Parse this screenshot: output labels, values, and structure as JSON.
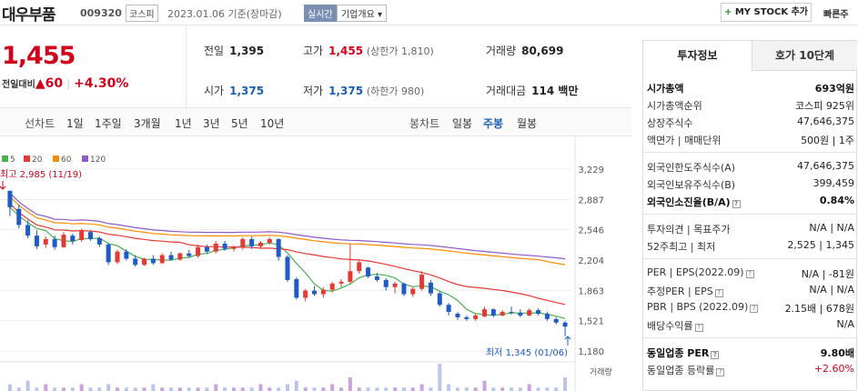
{
  "header": {
    "stock_name": "대우부품",
    "stock_code": "009320",
    "market": "코스피",
    "date_label": "2023.01.06 기준(장마감)",
    "live_label": "실시간",
    "company_info_label": "기업개요 ▾",
    "mystock_label": "MY STOCK 추가",
    "fast_label": "빠른주"
  },
  "price": {
    "current": "1,455",
    "change_label": "전일대비",
    "change_value": "▲60",
    "change_pct": "+4.30%"
  },
  "quotes": {
    "prev_close": {
      "label": "전일",
      "value": "1,395"
    },
    "high": {
      "label": "고가",
      "value": "1,455",
      "sub": "(상한가 1,810)"
    },
    "volume": {
      "label": "거래량",
      "value": "80,699"
    },
    "open": {
      "label": "시가",
      "value": "1,375"
    },
    "low": {
      "label": "저가",
      "value": "1,375",
      "sub": "(하한가 980)"
    },
    "amount": {
      "label": "거래대금",
      "value": "114 백만"
    }
  },
  "period_bar": {
    "line_title": "선차트",
    "line_periods": [
      "1일",
      "1주일",
      "3개월",
      "1년",
      "3년",
      "5년",
      "10년"
    ],
    "candle_title": "봉차트",
    "candle_periods": [
      "일봉",
      "주봉",
      "월봉"
    ],
    "active_candle": "주봉"
  },
  "chart_data": {
    "type": "candlestick",
    "legend": [
      {
        "name": "5",
        "color": "#4caf50"
      },
      {
        "name": "20",
        "color": "#e53935"
      },
      {
        "name": "60",
        "color": "#fb8c00"
      },
      {
        "name": "120",
        "color": "#8e5bc7"
      }
    ],
    "y_ticks": [
      "3,229",
      "2,887",
      "2,546",
      "2,204",
      "1,863",
      "1,521",
      "1,180"
    ],
    "ylim": [
      1180,
      3229
    ],
    "max_label": "최고 2,985 (11/19)",
    "min_label": "최저 1,345 (01/06)",
    "volume_label": "거래량",
    "candles": [
      [
        2985,
        2985,
        2700,
        2800
      ],
      [
        2780,
        2830,
        2560,
        2600
      ],
      [
        2600,
        2650,
        2450,
        2480
      ],
      [
        2480,
        2540,
        2330,
        2360
      ],
      [
        2380,
        2470,
        2340,
        2440
      ],
      [
        2440,
        2480,
        2320,
        2350
      ],
      [
        2350,
        2520,
        2340,
        2490
      ],
      [
        2480,
        2500,
        2380,
        2420
      ],
      [
        2430,
        2560,
        2410,
        2530
      ],
      [
        2520,
        2540,
        2420,
        2440
      ],
      [
        2450,
        2470,
        2350,
        2380
      ],
      [
        2380,
        2400,
        2150,
        2180
      ],
      [
        2180,
        2320,
        2160,
        2300
      ],
      [
        2300,
        2330,
        2200,
        2220
      ],
      [
        2220,
        2260,
        2130,
        2150
      ],
      [
        2150,
        2230,
        2140,
        2220
      ],
      [
        2220,
        2260,
        2150,
        2170
      ],
      [
        2170,
        2280,
        2160,
        2260
      ],
      [
        2260,
        2300,
        2200,
        2210
      ],
      [
        2210,
        2290,
        2200,
        2280
      ],
      [
        2280,
        2320,
        2230,
        2250
      ],
      [
        2250,
        2380,
        2230,
        2350
      ],
      [
        2350,
        2380,
        2280,
        2300
      ],
      [
        2300,
        2420,
        2280,
        2390
      ],
      [
        2390,
        2420,
        2310,
        2330
      ],
      [
        2330,
        2370,
        2300,
        2350
      ],
      [
        2350,
        2460,
        2320,
        2440
      ],
      [
        2440,
        2470,
        2330,
        2360
      ],
      [
        2360,
        2420,
        2330,
        2400
      ],
      [
        2400,
        2460,
        2380,
        2440
      ],
      [
        2440,
        2450,
        2200,
        2240
      ],
      [
        2240,
        2260,
        1960,
        1980
      ],
      [
        1990,
        2010,
        1760,
        1780
      ],
      [
        1780,
        1880,
        1740,
        1860
      ],
      [
        1860,
        1910,
        1800,
        1820
      ],
      [
        1820,
        1900,
        1780,
        1870
      ],
      [
        1870,
        1960,
        1840,
        1940
      ],
      [
        1940,
        1990,
        1900,
        1960
      ],
      [
        1960,
        2390,
        1940,
        2080
      ],
      [
        2080,
        2200,
        2050,
        2180
      ],
      [
        2120,
        2130,
        2000,
        2020
      ],
      [
        2020,
        2060,
        1960,
        1980
      ],
      [
        1980,
        2000,
        1860,
        1900
      ],
      [
        1900,
        1960,
        1830,
        1940
      ],
      [
        1940,
        1950,
        1800,
        1820
      ],
      [
        1820,
        1900,
        1790,
        1880
      ],
      [
        1880,
        2080,
        1860,
        2040
      ],
      [
        1950,
        1980,
        1800,
        1830
      ],
      [
        1830,
        1850,
        1680,
        1700
      ],
      [
        1700,
        1720,
        1580,
        1620
      ],
      [
        1600,
        1620,
        1530,
        1560
      ],
      [
        1560,
        1580,
        1520,
        1540
      ],
      [
        1540,
        1600,
        1520,
        1580
      ],
      [
        1570,
        1680,
        1560,
        1650
      ],
      [
        1650,
        1660,
        1560,
        1580
      ],
      [
        1580,
        1640,
        1570,
        1620
      ],
      [
        1620,
        1680,
        1590,
        1610
      ],
      [
        1610,
        1650,
        1560,
        1580
      ],
      [
        1580,
        1660,
        1570,
        1640
      ],
      [
        1640,
        1660,
        1580,
        1600
      ],
      [
        1600,
        1620,
        1520,
        1540
      ],
      [
        1540,
        1560,
        1480,
        1500
      ],
      [
        1500,
        1520,
        1345,
        1455
      ]
    ],
    "volumes": [
      2,
      1,
      3,
      1,
      2,
      1,
      1,
      1,
      2,
      1,
      1,
      2,
      1,
      1,
      1,
      1,
      2,
      1,
      1,
      1,
      1,
      1,
      1,
      2,
      1,
      1,
      1,
      1,
      2,
      1,
      1,
      2,
      3,
      1,
      1,
      1,
      2,
      1,
      4,
      1,
      1,
      1,
      1,
      1,
      1,
      1,
      2,
      1,
      8,
      2,
      1,
      1,
      1,
      3,
      1,
      1,
      1,
      1,
      2,
      1,
      1,
      1,
      4
    ]
  },
  "invest_panel": {
    "tab_active": "투자정보",
    "tab_inactive": "호가 10단계",
    "rows1": [
      {
        "k": "시가총액",
        "v": "693억원",
        "bold": true
      },
      {
        "k": "시가총액순위",
        "v": "코스피 925위",
        "bold": false
      },
      {
        "k": "상장주식수",
        "v": "47,646,375",
        "bold": false
      },
      {
        "k": "액면가 | 매매단위",
        "v": "500원 | 1주",
        "bold": false
      }
    ],
    "rows2": [
      {
        "k": "외국인한도주식수(A)",
        "v": "47,646,375",
        "bold": false
      },
      {
        "k": "외국인보유주식수(B)",
        "v": "399,459",
        "bold": false
      },
      {
        "k": "외국인소진율(B/A)",
        "v": "0.84%",
        "bold": true,
        "hint": true
      }
    ],
    "rows3": [
      {
        "k": "투자의견 | 목표주가",
        "v": "N/A | N/A",
        "bold": false
      },
      {
        "k": "52주최고 | 최저",
        "v": "2,525 | 1,345",
        "bold": false
      }
    ],
    "rows4": [
      {
        "k": "PER | EPS(2022.09)",
        "v": "N/A | -81원",
        "bold": false,
        "hint": true
      },
      {
        "k": "추정PER | EPS",
        "v": "N/A | N/A",
        "bold": false,
        "hint": true
      },
      {
        "k": "PBR | BPS (2022.09)",
        "v": "2.15배 | 678원",
        "bold": false,
        "hint": true
      },
      {
        "k": "배당수익률",
        "v": "N/A",
        "bold": false,
        "hint": true
      }
    ],
    "rows5": [
      {
        "k": "동일업종 PER",
        "v": "9.80배",
        "bold": true,
        "hint": true
      },
      {
        "k": "동일업종 등락률",
        "v": "+2.60%",
        "bold": false,
        "red": true,
        "hint": true
      }
    ]
  }
}
